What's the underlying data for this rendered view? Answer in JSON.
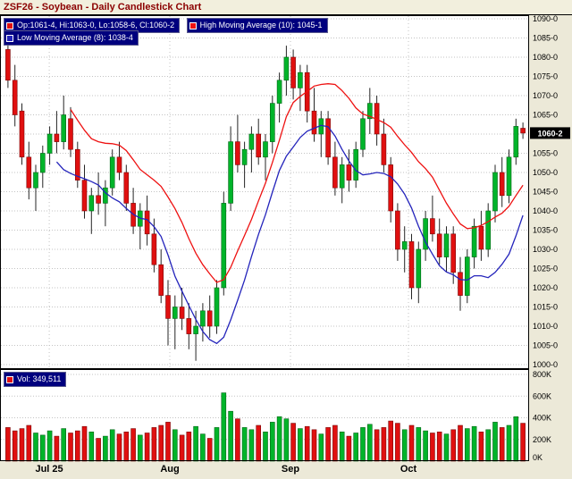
{
  "title": "ZSF26 - Soybean - Daily Candlestick Chart",
  "legend": {
    "ohlc": "Op:1061-4, Hi:1063-0, Lo:1058-6, Cl:1060-2",
    "high_ma": "High Moving Average (10): 1045-1",
    "low_ma": "Low Moving Average (8): 1038-4",
    "volume": "Vol: 349,511"
  },
  "colors": {
    "up": "#00b42a",
    "up_dark": "#006414",
    "down": "#e01010",
    "down_dark": "#7a0606",
    "high_ma": "#ee1111",
    "low_ma": "#2424bb",
    "title_text": "#8b0000",
    "legend_bg": "#00007e",
    "price_box_bg": "#000000",
    "price_box_text": "#ffffff",
    "grid": "#c3c3c3"
  },
  "price_axis": {
    "hidden_tick": 1060,
    "current": {
      "value": 1060.25,
      "label": "1060-2"
    },
    "ticks": [
      {
        "v": 1090,
        "t": "1090-0"
      },
      {
        "v": 1085,
        "t": "1085-0"
      },
      {
        "v": 1080,
        "t": "1080-0"
      },
      {
        "v": 1075,
        "t": "1075-0"
      },
      {
        "v": 1070,
        "t": "1070-0"
      },
      {
        "v": 1065,
        "t": "1065-0"
      },
      {
        "v": 1060,
        "t": "1060-0"
      },
      {
        "v": 1055,
        "t": "1055-0"
      },
      {
        "v": 1050,
        "t": "1050-0"
      },
      {
        "v": 1045,
        "t": "1045-0"
      },
      {
        "v": 1040,
        "t": "1040-0"
      },
      {
        "v": 1035,
        "t": "1035-0"
      },
      {
        "v": 1030,
        "t": "1030-0"
      },
      {
        "v": 1025,
        "t": "1025-0"
      },
      {
        "v": 1020,
        "t": "1020-0"
      },
      {
        "v": 1015,
        "t": "1015-0"
      },
      {
        "v": 1010,
        "t": "1010-0"
      },
      {
        "v": 1005,
        "t": "1005-0"
      },
      {
        "v": 1000,
        "t": "1000-0"
      }
    ]
  },
  "volume_axis": {
    "ticks": [
      {
        "v": 800,
        "t": "800K"
      },
      {
        "v": 600,
        "t": "600K"
      },
      {
        "v": 400,
        "t": "400K"
      },
      {
        "v": 200,
        "t": "200K"
      },
      {
        "v": 0,
        "t": "0K"
      }
    ]
  },
  "x_axis": {
    "labels": [
      {
        "text": "Jul 25",
        "x": 0.093
      },
      {
        "text": "Aug",
        "x": 0.321
      },
      {
        "text": "Sep",
        "x": 0.549
      },
      {
        "text": "Oct",
        "x": 0.772
      }
    ]
  },
  "chart_data": {
    "type": "candlestick",
    "symbol": "ZSF26",
    "title": "ZSF26 - Soybean - Daily Candlestick Chart",
    "ylim": [
      1000,
      1090
    ],
    "volume_ylim_k": [
      0,
      800
    ],
    "grid": true,
    "columns": [
      "open",
      "high",
      "low",
      "close",
      "volume_k"
    ],
    "last_bar": {
      "open": "1061-4",
      "high": "1063-0",
      "low": "1058-6",
      "close": "1060-2",
      "volume": "349,511"
    },
    "overlays": [
      {
        "name": "High Moving Average (10)",
        "period": 10,
        "source": "high",
        "last_value_label": "1045-1"
      },
      {
        "name": "Low Moving Average (8)",
        "period": 8,
        "source": "low",
        "last_value_label": "1038-4"
      }
    ],
    "candles": [
      [
        1082,
        1086,
        1072,
        1074,
        310
      ],
      [
        1074,
        1078,
        1062,
        1065,
        280
      ],
      [
        1066,
        1068,
        1052,
        1054,
        300
      ],
      [
        1054,
        1058,
        1043,
        1046,
        330
      ],
      [
        1046,
        1052,
        1040,
        1050,
        260
      ],
      [
        1050,
        1057,
        1046,
        1055,
        240
      ],
      [
        1055,
        1062,
        1052,
        1060,
        280
      ],
      [
        1060,
        1066,
        1055,
        1058,
        230
      ],
      [
        1058,
        1070,
        1056,
        1065,
        300
      ],
      [
        1064,
        1067,
        1054,
        1056,
        260
      ],
      [
        1056,
        1058,
        1046,
        1048,
        280
      ],
      [
        1048,
        1052,
        1038,
        1040,
        320
      ],
      [
        1040,
        1046,
        1034,
        1044,
        270
      ],
      [
        1044,
        1050,
        1039,
        1042,
        210
      ],
      [
        1042,
        1048,
        1036,
        1046,
        230
      ],
      [
        1046,
        1056,
        1044,
        1054,
        290
      ],
      [
        1054,
        1058,
        1048,
        1050,
        250
      ],
      [
        1050,
        1052,
        1040,
        1042,
        270
      ],
      [
        1042,
        1046,
        1034,
        1036,
        300
      ],
      [
        1036,
        1042,
        1030,
        1040,
        240
      ],
      [
        1040,
        1044,
        1031,
        1034,
        260
      ],
      [
        1034,
        1038,
        1024,
        1026,
        310
      ],
      [
        1026,
        1030,
        1016,
        1018,
        330
      ],
      [
        1018,
        1022,
        1005,
        1012,
        360
      ],
      [
        1012,
        1018,
        1004,
        1015,
        290
      ],
      [
        1015,
        1020,
        1009,
        1012,
        240
      ],
      [
        1012,
        1016,
        1004,
        1008,
        270
      ],
      [
        1008,
        1014,
        1001,
        1010,
        320
      ],
      [
        1010,
        1016,
        1006,
        1014,
        250
      ],
      [
        1014,
        1018,
        1007,
        1010,
        210
      ],
      [
        1010,
        1022,
        1008,
        1020,
        310
      ],
      [
        1020,
        1045,
        1018,
        1042,
        630
      ],
      [
        1042,
        1062,
        1040,
        1058,
        460
      ],
      [
        1058,
        1065,
        1050,
        1052,
        390
      ],
      [
        1052,
        1058,
        1046,
        1056,
        310
      ],
      [
        1056,
        1062,
        1050,
        1060,
        290
      ],
      [
        1060,
        1064,
        1052,
        1054,
        330
      ],
      [
        1054,
        1060,
        1048,
        1058,
        270
      ],
      [
        1058,
        1070,
        1055,
        1068,
        360
      ],
      [
        1068,
        1076,
        1063,
        1074,
        410
      ],
      [
        1074,
        1083,
        1070,
        1080,
        390
      ],
      [
        1080,
        1082,
        1069,
        1072,
        350
      ],
      [
        1072,
        1078,
        1066,
        1076,
        300
      ],
      [
        1076,
        1078,
        1063,
        1066,
        320
      ],
      [
        1066,
        1072,
        1058,
        1060,
        290
      ],
      [
        1060,
        1066,
        1054,
        1064,
        250
      ],
      [
        1064,
        1066,
        1052,
        1054,
        310
      ],
      [
        1054,
        1058,
        1044,
        1046,
        330
      ],
      [
        1046,
        1054,
        1042,
        1052,
        270
      ],
      [
        1052,
        1056,
        1045,
        1048,
        230
      ],
      [
        1048,
        1058,
        1046,
        1056,
        260
      ],
      [
        1056,
        1066,
        1054,
        1064,
        310
      ],
      [
        1064,
        1072,
        1060,
        1068,
        340
      ],
      [
        1068,
        1070,
        1057,
        1060,
        290
      ],
      [
        1060,
        1064,
        1050,
        1052,
        310
      ],
      [
        1052,
        1054,
        1037,
        1040,
        370
      ],
      [
        1040,
        1042,
        1027,
        1030,
        350
      ],
      [
        1030,
        1036,
        1024,
        1032,
        290
      ],
      [
        1032,
        1034,
        1017,
        1020,
        330
      ],
      [
        1020,
        1032,
        1016,
        1030,
        310
      ],
      [
        1030,
        1040,
        1027,
        1038,
        280
      ],
      [
        1038,
        1044,
        1032,
        1034,
        260
      ],
      [
        1034,
        1038,
        1026,
        1028,
        270
      ],
      [
        1028,
        1036,
        1024,
        1034,
        250
      ],
      [
        1034,
        1036,
        1021,
        1024,
        290
      ],
      [
        1024,
        1028,
        1014,
        1018,
        330
      ],
      [
        1018,
        1030,
        1016,
        1028,
        300
      ],
      [
        1028,
        1038,
        1025,
        1036,
        320
      ],
      [
        1036,
        1040,
        1027,
        1030,
        270
      ],
      [
        1030,
        1042,
        1028,
        1040,
        290
      ],
      [
        1040,
        1052,
        1037,
        1050,
        360
      ],
      [
        1050,
        1054,
        1041,
        1044,
        310
      ],
      [
        1044,
        1056,
        1042,
        1054,
        330
      ],
      [
        1054,
        1064,
        1052,
        1062,
        410
      ],
      [
        1061.5,
        1063,
        1058.75,
        1060.25,
        349.5
      ]
    ]
  }
}
